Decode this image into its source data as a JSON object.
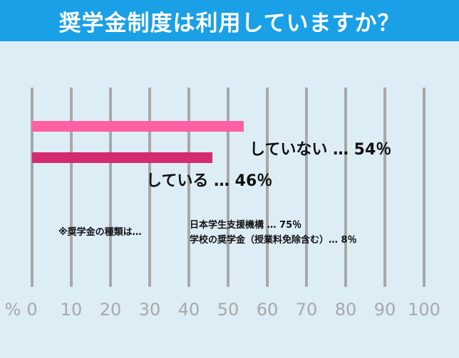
{
  "title": "奨学金制度は利用していますか？",
  "chart_data": {
    "type": "bar",
    "orientation": "horizontal",
    "unit_label": "%",
    "xlim": [
      0,
      100
    ],
    "ticks": [
      0,
      10,
      20,
      30,
      40,
      50,
      60,
      70,
      80,
      90,
      100
    ],
    "series": [
      {
        "category": "していない",
        "value": 54,
        "label": "していない … 54％",
        "color": "#ff5fa3"
      },
      {
        "category": "している",
        "value": 46,
        "label": "している … 46％",
        "color": "#d42a6f"
      }
    ],
    "annotations": {
      "note_title": "※奨学金の種類は…",
      "note_lines": [
        "日本学生支援機構 … 75％",
        "学校の奨学金（授業料免除含む）… 8％"
      ]
    },
    "grid": true,
    "grid_color": "#a8a8a8"
  },
  "colors": {
    "header_bg": "#1aa0e6",
    "background": "#dcedf6",
    "bar_light": "#ff5fa3",
    "bar_dark": "#d42a6f"
  }
}
